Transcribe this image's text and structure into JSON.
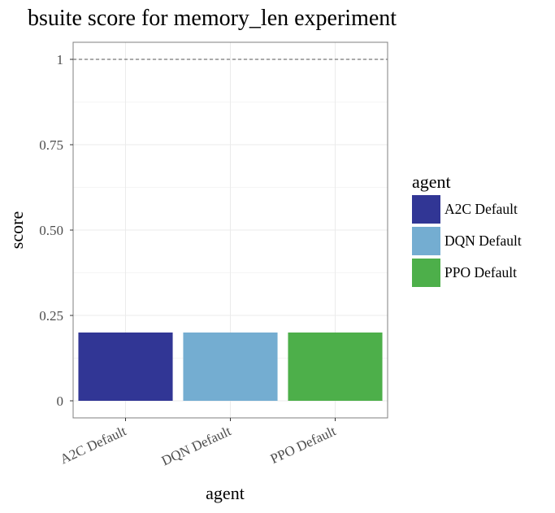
{
  "chart_data": {
    "type": "bar",
    "title": "bsuite score for memory_len experiment",
    "xlabel": "agent",
    "ylabel": "score",
    "categories": [
      "A2C Default",
      "DQN Default",
      "PPO Default"
    ],
    "values": [
      0.2,
      0.2,
      0.2
    ],
    "colors": [
      "#313695",
      "#74add1",
      "#4daf4a"
    ],
    "ylim": [
      -0.05,
      1.05
    ],
    "yticks": [
      0,
      0.25,
      0.5,
      0.75,
      1
    ],
    "ytick_labels": [
      "0",
      "0.25",
      "0.50",
      "0.75",
      "1"
    ],
    "reference_line": 1,
    "grid": true,
    "legend": {
      "title": "agent",
      "placement": "right",
      "entries": [
        "A2C Default",
        "DQN Default",
        "PPO Default"
      ]
    }
  }
}
